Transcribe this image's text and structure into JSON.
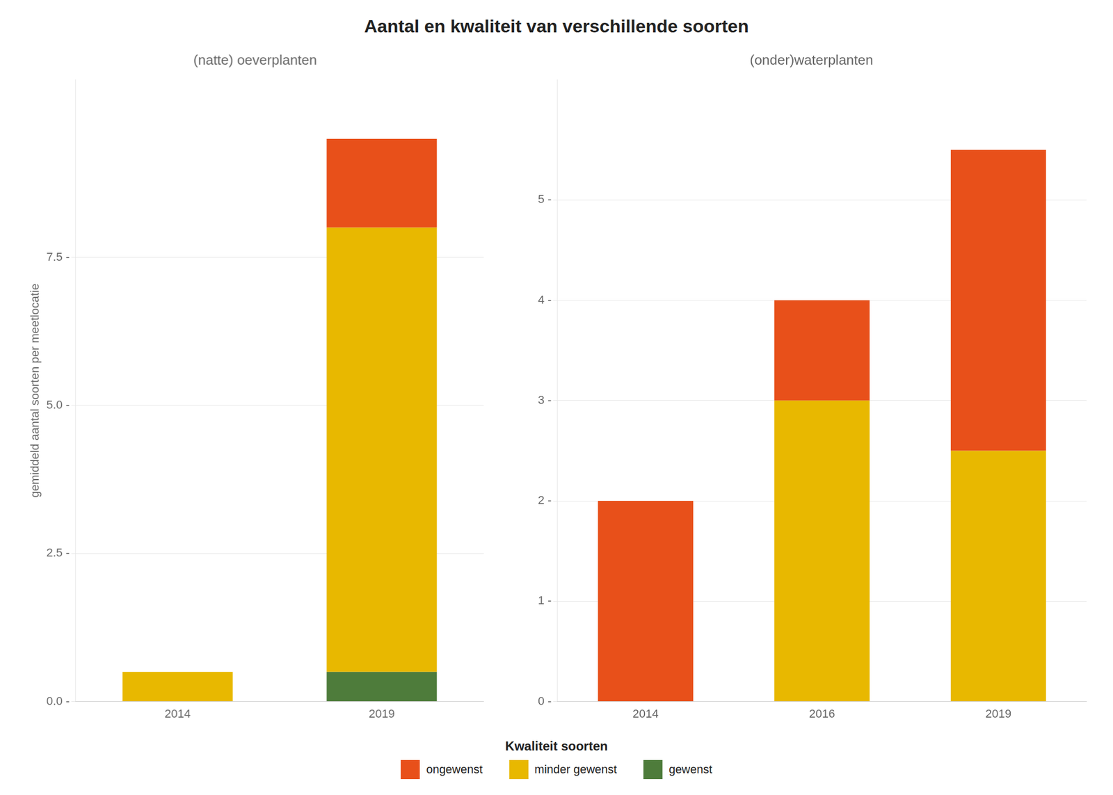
{
  "title": "Aantal en kwaliteit van verschillende soorten",
  "legend_title": "Kwaliteit soorten",
  "legend": "bottom",
  "chart_data": [
    {
      "type": "bar",
      "title": "(natte) oeverplanten",
      "ylabel": "gemiddeld aantal soorten per meetlocatie",
      "categories": [
        "2014",
        "2019"
      ],
      "series": [
        {
          "name": "ongewenst",
          "color": "#E8501A",
          "values": [
            0.0,
            1.5
          ]
        },
        {
          "name": "minder gewenst",
          "color": "#E8B800",
          "values": [
            0.5,
            7.5
          ]
        },
        {
          "name": "gewenst",
          "color": "#4E7C3B",
          "values": [
            0.0,
            0.5
          ]
        }
      ],
      "stacked": true,
      "ylim": [
        0,
        10.5
      ],
      "yticks": [
        {
          "value": 0.0,
          "label": "0.0 -"
        },
        {
          "value": 2.5,
          "label": "2.5 -"
        },
        {
          "value": 5.0,
          "label": "5.0 -"
        },
        {
          "value": 7.5,
          "label": "7.5 -"
        }
      ],
      "grid": true
    },
    {
      "type": "bar",
      "title": "(onder)waterplanten",
      "categories": [
        "2014",
        "2016",
        "2019"
      ],
      "series": [
        {
          "name": "ongewenst",
          "color": "#E8501A",
          "values": [
            2.0,
            1.0,
            3.0
          ]
        },
        {
          "name": "minder gewenst",
          "color": "#E8B800",
          "values": [
            0.0,
            3.0,
            2.5
          ]
        },
        {
          "name": "gewenst",
          "color": "#4E7C3B",
          "values": [
            0.0,
            0.0,
            0.0
          ]
        }
      ],
      "stacked": true,
      "ylim": [
        0,
        6.2
      ],
      "yticks": [
        {
          "value": 0,
          "label": "0 -"
        },
        {
          "value": 1,
          "label": "1 -"
        },
        {
          "value": 2,
          "label": "2 -"
        },
        {
          "value": 3,
          "label": "3 -"
        },
        {
          "value": 4,
          "label": "4 -"
        },
        {
          "value": 5,
          "label": "5 -"
        }
      ],
      "grid": true
    }
  ]
}
